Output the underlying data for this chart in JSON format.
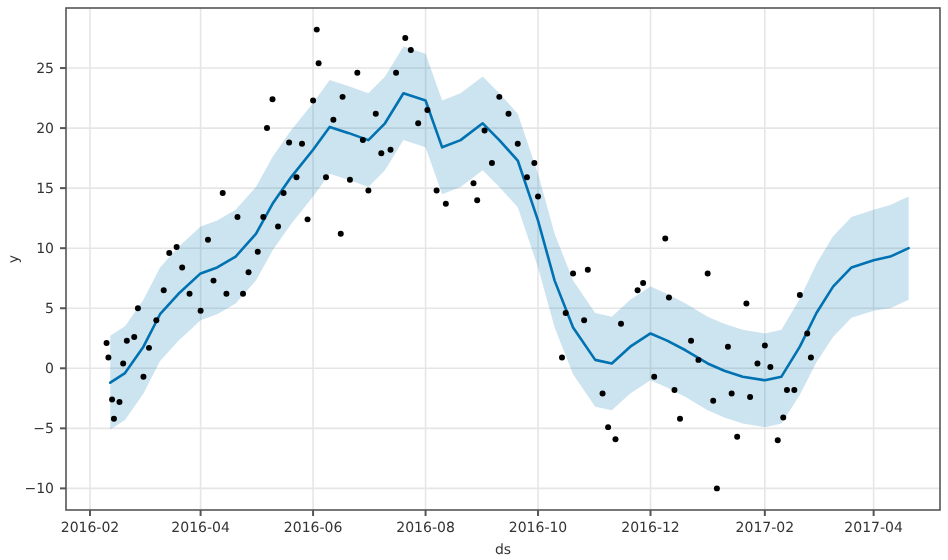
{
  "chart_data": {
    "type": "scatter",
    "xlabel": "ds",
    "ylabel": "y",
    "grid": true,
    "xlim": [
      "2016-01-19",
      "2017-05-07"
    ],
    "ylim": [
      -11.8,
      30
    ],
    "xticks": [
      {
        "value": "2016-02-01",
        "label": "2016-02"
      },
      {
        "value": "2016-04-01",
        "label": "2016-04"
      },
      {
        "value": "2016-06-01",
        "label": "2016-06"
      },
      {
        "value": "2016-08-01",
        "label": "2016-08"
      },
      {
        "value": "2016-10-01",
        "label": "2016-10"
      },
      {
        "value": "2016-12-01",
        "label": "2016-12"
      },
      {
        "value": "2017-02-01",
        "label": "2017-02"
      },
      {
        "value": "2017-04-01",
        "label": "2017-04"
      }
    ],
    "yticks": [
      -10,
      -5,
      0,
      5,
      10,
      15,
      20,
      25
    ],
    "series": [
      {
        "type": "line",
        "color": "#0072b2",
        "line_style": "solid",
        "x": [
          "2016-02-12",
          "2016-02-20",
          "2016-03-01",
          "2016-03-10",
          "2016-03-20",
          "2016-04-01",
          "2016-04-10",
          "2016-04-20",
          "2016-05-01",
          "2016-05-10",
          "2016-05-20",
          "2016-06-01",
          "2016-06-10",
          "2016-06-20",
          "2016-07-01",
          "2016-07-10",
          "2016-07-20",
          "2016-08-01",
          "2016-08-10",
          "2016-08-20",
          "2016-09-01",
          "2016-09-10",
          "2016-09-20",
          "2016-10-01",
          "2016-10-10",
          "2016-10-20",
          "2016-11-01",
          "2016-11-10",
          "2016-11-20",
          "2016-12-01",
          "2016-12-10",
          "2016-12-20",
          "2017-01-01",
          "2017-01-10",
          "2017-01-20",
          "2017-02-01",
          "2017-02-10",
          "2017-02-20",
          "2017-03-01",
          "2017-03-10",
          "2017-03-20",
          "2017-04-01",
          "2017-04-10",
          "2017-04-20"
        ],
        "values": [
          -1.2,
          -0.4,
          1.8,
          4.5,
          6.2,
          7.9,
          8.4,
          9.3,
          11.2,
          13.7,
          15.9,
          18.2,
          20.1,
          19.6,
          19.0,
          20.4,
          22.9,
          22.3,
          18.4,
          19.0,
          20.4,
          19.0,
          17.3,
          12.3,
          7.3,
          3.4,
          0.7,
          0.4,
          1.8,
          2.9,
          2.3,
          1.5,
          0.4,
          -0.2,
          -0.7,
          -1.0,
          -0.7,
          1.8,
          4.6,
          6.8,
          8.4,
          9.0,
          9.3,
          10.0
        ],
        "lower": [
          -5.1,
          -4.3,
          -2.1,
          0.6,
          2.3,
          4.0,
          4.5,
          5.4,
          7.3,
          9.8,
          12.0,
          14.3,
          16.2,
          15.7,
          15.1,
          16.5,
          19.0,
          18.4,
          14.5,
          15.1,
          16.5,
          15.1,
          13.4,
          8.4,
          3.4,
          -0.5,
          -3.2,
          -3.5,
          -2.1,
          -1.0,
          -1.6,
          -2.4,
          -3.5,
          -4.1,
          -4.6,
          -4.9,
          -4.6,
          -2.2,
          0.5,
          2.6,
          4.2,
          4.8,
          5.0,
          5.7
        ],
        "upper": [
          2.7,
          3.5,
          5.7,
          8.4,
          10.1,
          11.8,
          12.3,
          13.2,
          15.1,
          17.6,
          19.8,
          22.1,
          24.0,
          23.5,
          22.9,
          24.3,
          26.8,
          26.2,
          22.3,
          22.9,
          24.3,
          22.9,
          21.2,
          16.2,
          11.2,
          7.3,
          4.6,
          4.3,
          5.7,
          6.8,
          6.2,
          5.4,
          4.3,
          3.7,
          3.2,
          2.9,
          3.2,
          5.8,
          8.7,
          11.0,
          12.6,
          13.2,
          13.6,
          14.3
        ]
      },
      {
        "color": "#000000",
        "marker": "circle",
        "x": [
          "2016-02-10",
          "2016-02-11",
          "2016-02-13",
          "2016-02-14",
          "2016-02-17",
          "2016-02-19",
          "2016-02-21",
          "2016-02-25",
          "2016-02-27",
          "2016-03-01",
          "2016-03-04",
          "2016-03-08",
          "2016-03-12",
          "2016-03-15",
          "2016-03-19",
          "2016-03-22",
          "2016-03-26",
          "2016-04-01",
          "2016-04-05",
          "2016-04-08",
          "2016-04-13",
          "2016-04-15",
          "2016-04-21",
          "2016-04-24",
          "2016-04-27",
          "2016-05-02",
          "2016-05-05",
          "2016-05-07",
          "2016-05-10",
          "2016-05-13",
          "2016-05-16",
          "2016-05-19",
          "2016-05-23",
          "2016-05-26",
          "2016-05-29",
          "2016-06-01",
          "2016-06-03",
          "2016-06-04",
          "2016-06-08",
          "2016-06-12",
          "2016-06-16",
          "2016-06-17",
          "2016-06-21",
          "2016-06-25",
          "2016-06-28",
          "2016-07-01",
          "2016-07-05",
          "2016-07-08",
          "2016-07-13",
          "2016-07-16",
          "2016-07-21",
          "2016-07-24",
          "2016-07-28",
          "2016-08-02",
          "2016-08-07",
          "2016-08-12",
          "2016-08-27",
          "2016-08-29",
          "2016-09-02",
          "2016-09-06",
          "2016-09-10",
          "2016-09-15",
          "2016-09-20",
          "2016-09-25",
          "2016-09-29",
          "2016-10-01",
          "2016-10-14",
          "2016-10-16",
          "2016-10-20",
          "2016-10-26",
          "2016-10-28",
          "2016-11-05",
          "2016-11-08",
          "2016-11-12",
          "2016-11-15",
          "2016-11-24",
          "2016-11-27",
          "2016-12-03",
          "2016-12-09",
          "2016-12-11",
          "2016-12-14",
          "2016-12-17",
          "2016-12-23",
          "2016-12-27",
          "2017-01-01",
          "2017-01-04",
          "2017-01-06",
          "2017-01-12",
          "2017-01-14",
          "2017-01-17",
          "2017-01-22",
          "2017-01-24",
          "2017-01-28",
          "2017-02-01",
          "2017-02-04",
          "2017-02-08",
          "2017-02-11",
          "2017-02-13",
          "2017-02-17",
          "2017-02-20",
          "2017-02-24",
          "2017-02-26"
        ],
        "values": [
          2.1,
          0.9,
          -2.6,
          -4.2,
          -2.8,
          0.4,
          2.3,
          2.6,
          5.0,
          -0.7,
          1.7,
          4.0,
          6.5,
          9.6,
          10.1,
          8.4,
          6.2,
          4.8,
          10.7,
          7.3,
          14.6,
          6.2,
          12.6,
          6.2,
          8.0,
          9.7,
          12.6,
          20.0,
          22.4,
          11.8,
          14.6,
          18.8,
          15.9,
          18.7,
          12.4,
          22.3,
          28.2,
          25.4,
          15.9,
          20.7,
          11.2,
          22.6,
          15.7,
          24.6,
          19.0,
          14.8,
          21.2,
          17.9,
          18.2,
          24.6,
          27.5,
          26.5,
          20.4,
          21.5,
          14.8,
          13.7,
          15.4,
          14.0,
          19.8,
          17.1,
          22.6,
          21.2,
          18.7,
          15.9,
          17.1,
          14.3,
          0.9,
          4.6,
          7.9,
          4.0,
          8.2,
          -2.1,
          -4.9,
          -5.9,
          3.7,
          6.5,
          7.1,
          -0.7,
          10.8,
          5.9,
          -1.8,
          -4.2,
          2.3,
          0.7,
          7.9,
          -2.7,
          -10.0,
          1.8,
          -2.1,
          -5.7,
          5.4,
          -2.4,
          0.4,
          1.9,
          0.1,
          -6.0,
          -4.1,
          -1.8,
          -1.8,
          6.1,
          2.9,
          0.9
        ]
      }
    ]
  }
}
